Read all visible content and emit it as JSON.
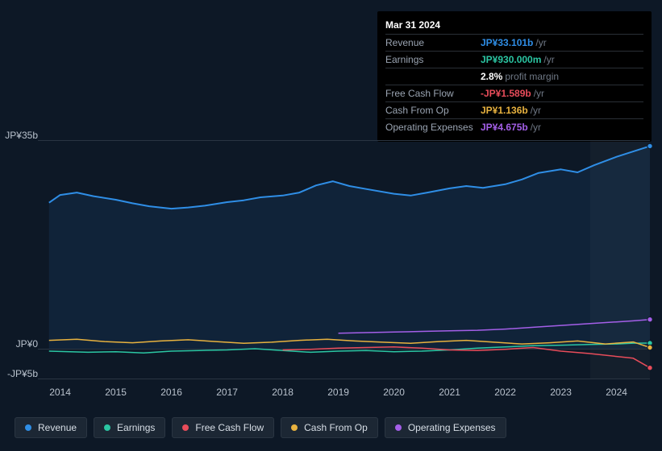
{
  "tooltip": {
    "date": "Mar 31 2024",
    "rows": [
      {
        "label": "Revenue",
        "value": "JP¥33.101b",
        "unit": "/yr",
        "color": "#2f8ee6"
      },
      {
        "label": "Earnings",
        "value": "JP¥930.000m",
        "unit": "/yr",
        "color": "#2bc6a3",
        "extra_value": "2.8%",
        "extra_unit": "profit margin"
      },
      {
        "label": "Free Cash Flow",
        "value": "-JP¥1.589b",
        "unit": "/yr",
        "color": "#e84c5a"
      },
      {
        "label": "Cash From Op",
        "value": "JP¥1.136b",
        "unit": "/yr",
        "color": "#e8b23f"
      },
      {
        "label": "Operating Expenses",
        "value": "JP¥4.675b",
        "unit": "/yr",
        "color": "#a45fe8"
      }
    ]
  },
  "chart": {
    "type": "line-area",
    "background_color": "#0d1826",
    "grid_color": "#2a3542",
    "y_axis": {
      "ticks": [
        {
          "label": "JP¥35b",
          "value": 35
        },
        {
          "label": "JP¥0",
          "value": 0
        },
        {
          "label": "-JP¥5b",
          "value": -5
        }
      ],
      "min": -5,
      "max": 35
    },
    "x_axis": {
      "labels": [
        "2014",
        "2015",
        "2016",
        "2017",
        "2018",
        "2019",
        "2020",
        "2021",
        "2022",
        "2023",
        "2024"
      ],
      "min": 2013.6,
      "max": 2024.6
    },
    "series": [
      {
        "name": "Revenue",
        "color": "#2f8ee6",
        "fill": true,
        "line_width": 2,
        "data": [
          [
            2013.8,
            24.5
          ],
          [
            2014.0,
            25.8
          ],
          [
            2014.3,
            26.2
          ],
          [
            2014.6,
            25.6
          ],
          [
            2015.0,
            25.0
          ],
          [
            2015.3,
            24.4
          ],
          [
            2015.6,
            23.9
          ],
          [
            2016.0,
            23.5
          ],
          [
            2016.3,
            23.7
          ],
          [
            2016.6,
            24.0
          ],
          [
            2017.0,
            24.6
          ],
          [
            2017.3,
            24.9
          ],
          [
            2017.6,
            25.4
          ],
          [
            2018.0,
            25.7
          ],
          [
            2018.3,
            26.2
          ],
          [
            2018.6,
            27.4
          ],
          [
            2018.9,
            28.1
          ],
          [
            2019.2,
            27.3
          ],
          [
            2019.5,
            26.8
          ],
          [
            2020.0,
            26.0
          ],
          [
            2020.3,
            25.7
          ],
          [
            2020.6,
            26.2
          ],
          [
            2021.0,
            26.9
          ],
          [
            2021.3,
            27.3
          ],
          [
            2021.6,
            27.0
          ],
          [
            2022.0,
            27.6
          ],
          [
            2022.3,
            28.4
          ],
          [
            2022.6,
            29.5
          ],
          [
            2023.0,
            30.1
          ],
          [
            2023.3,
            29.6
          ],
          [
            2023.6,
            30.8
          ],
          [
            2024.0,
            32.2
          ],
          [
            2024.3,
            33.1
          ],
          [
            2024.6,
            34.0
          ]
        ]
      },
      {
        "name": "Earnings",
        "color": "#2bc6a3",
        "fill": false,
        "line_width": 1.5,
        "data": [
          [
            2013.8,
            -0.4
          ],
          [
            2014.5,
            -0.6
          ],
          [
            2015.0,
            -0.5
          ],
          [
            2015.5,
            -0.7
          ],
          [
            2016.0,
            -0.4
          ],
          [
            2016.5,
            -0.3
          ],
          [
            2017.0,
            -0.2
          ],
          [
            2017.5,
            0.0
          ],
          [
            2018.0,
            -0.3
          ],
          [
            2018.5,
            -0.6
          ],
          [
            2019.0,
            -0.4
          ],
          [
            2019.5,
            -0.3
          ],
          [
            2020.0,
            -0.5
          ],
          [
            2020.5,
            -0.4
          ],
          [
            2021.0,
            -0.2
          ],
          [
            2021.5,
            0.1
          ],
          [
            2022.0,
            0.3
          ],
          [
            2022.5,
            0.5
          ],
          [
            2023.0,
            0.6
          ],
          [
            2023.5,
            0.7
          ],
          [
            2024.0,
            0.8
          ],
          [
            2024.3,
            0.93
          ],
          [
            2024.6,
            0.95
          ]
        ]
      },
      {
        "name": "Free Cash Flow",
        "color": "#e84c5a",
        "fill": false,
        "line_width": 1.5,
        "data": [
          [
            2018.0,
            -0.2
          ],
          [
            2018.5,
            -0.1
          ],
          [
            2019.0,
            0.1
          ],
          [
            2019.5,
            0.2
          ],
          [
            2020.0,
            0.3
          ],
          [
            2020.5,
            0.1
          ],
          [
            2021.0,
            -0.2
          ],
          [
            2021.5,
            -0.3
          ],
          [
            2022.0,
            -0.1
          ],
          [
            2022.5,
            0.2
          ],
          [
            2023.0,
            -0.4
          ],
          [
            2023.5,
            -0.8
          ],
          [
            2024.0,
            -1.3
          ],
          [
            2024.3,
            -1.59
          ],
          [
            2024.6,
            -3.2
          ]
        ]
      },
      {
        "name": "Cash From Op",
        "color": "#e8b23f",
        "fill": false,
        "line_width": 1.5,
        "data": [
          [
            2013.8,
            1.4
          ],
          [
            2014.3,
            1.6
          ],
          [
            2014.8,
            1.2
          ],
          [
            2015.3,
            1.0
          ],
          [
            2015.8,
            1.3
          ],
          [
            2016.3,
            1.5
          ],
          [
            2016.8,
            1.2
          ],
          [
            2017.3,
            0.9
          ],
          [
            2017.8,
            1.1
          ],
          [
            2018.3,
            1.4
          ],
          [
            2018.8,
            1.6
          ],
          [
            2019.3,
            1.3
          ],
          [
            2019.8,
            1.1
          ],
          [
            2020.3,
            0.9
          ],
          [
            2020.8,
            1.2
          ],
          [
            2021.3,
            1.4
          ],
          [
            2021.8,
            1.1
          ],
          [
            2022.3,
            0.8
          ],
          [
            2022.8,
            1.0
          ],
          [
            2023.3,
            1.3
          ],
          [
            2023.8,
            0.8
          ],
          [
            2024.3,
            1.14
          ],
          [
            2024.6,
            0.2
          ]
        ]
      },
      {
        "name": "Operating Expenses",
        "color": "#a45fe8",
        "fill": false,
        "line_width": 1.5,
        "data": [
          [
            2019.0,
            2.6
          ],
          [
            2019.5,
            2.7
          ],
          [
            2020.0,
            2.8
          ],
          [
            2020.5,
            2.9
          ],
          [
            2021.0,
            3.0
          ],
          [
            2021.5,
            3.1
          ],
          [
            2022.0,
            3.3
          ],
          [
            2022.5,
            3.6
          ],
          [
            2023.0,
            3.9
          ],
          [
            2023.5,
            4.2
          ],
          [
            2024.0,
            4.5
          ],
          [
            2024.3,
            4.68
          ],
          [
            2024.6,
            4.9
          ]
        ]
      }
    ],
    "cursor_x": 2024.3,
    "forecast_start_x": 2023.6
  },
  "legend": {
    "items": [
      {
        "label": "Revenue",
        "color": "#2f8ee6"
      },
      {
        "label": "Earnings",
        "color": "#2bc6a3"
      },
      {
        "label": "Free Cash Flow",
        "color": "#e84c5a"
      },
      {
        "label": "Cash From Op",
        "color": "#e8b23f"
      },
      {
        "label": "Operating Expenses",
        "color": "#a45fe8"
      }
    ]
  }
}
